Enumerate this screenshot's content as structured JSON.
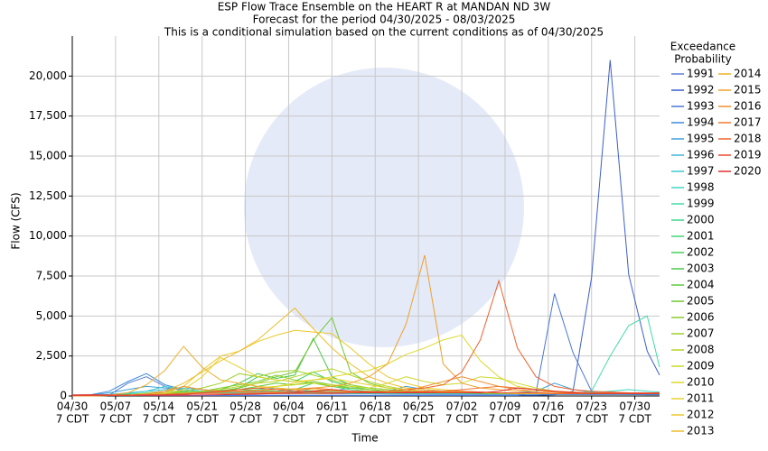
{
  "chart_data": {
    "type": "line",
    "title_lines": [
      "ESP Flow Trace Ensemble on the HEART R at MANDAN ND 3W",
      "Forecast for the period 04/30/2025 - 08/03/2025",
      "This is a conditional simulation based on the current conditions as of 04/30/2025"
    ],
    "x_label": "Time",
    "y_label": "Flow (CFS)",
    "legend_title": [
      "Exceedance",
      "Probability"
    ],
    "xlim": [
      "04/30",
      "08/03"
    ],
    "xticks": [
      "04/30",
      "05/07",
      "05/14",
      "05/21",
      "05/28",
      "06/04",
      "06/11",
      "06/18",
      "06/25",
      "07/02",
      "07/09",
      "07/16",
      "07/23",
      "07/30"
    ],
    "xtick_suffix": "7 CDT",
    "ylim": [
      0,
      22500
    ],
    "yticks": [
      0,
      {
        "value": 2500,
        "label": "2,500"
      },
      {
        "value": 5000,
        "label": "5,000"
      },
      {
        "value": 7500,
        "label": "7,500"
      },
      {
        "value": 10000,
        "label": "10,000"
      },
      {
        "value": 12500,
        "label": "12,500"
      },
      {
        "value": 15000,
        "label": "15,000"
      },
      {
        "value": 17500,
        "label": "17,500"
      },
      {
        "value": 20000,
        "label": "20,000"
      }
    ],
    "grid": true,
    "x": [
      "04/30",
      "05/03",
      "05/06",
      "05/09",
      "05/12",
      "05/15",
      "05/18",
      "05/21",
      "05/24",
      "05/27",
      "05/30",
      "06/02",
      "06/05",
      "06/08",
      "06/11",
      "06/14",
      "06/17",
      "06/20",
      "06/23",
      "06/26",
      "06/29",
      "07/02",
      "07/05",
      "07/08",
      "07/11",
      "07/14",
      "07/17",
      "07/20",
      "07/23",
      "07/26",
      "07/29",
      "08/01",
      "08/03"
    ],
    "series": [
      {
        "name": "1991",
        "color": "#5b7fd0",
        "values": [
          50,
          50,
          60,
          800,
          1200,
          600,
          300,
          250,
          200,
          200,
          180,
          170,
          160,
          150,
          150,
          140,
          140,
          130,
          130,
          130,
          120,
          120,
          120,
          110,
          110,
          110,
          110,
          100,
          100,
          100,
          100,
          100,
          100
        ]
      },
      {
        "name": "1992",
        "color": "#3c5fc8",
        "values": [
          40,
          40,
          40,
          40,
          40,
          40,
          40,
          40,
          40,
          40,
          40,
          40,
          40,
          40,
          40,
          40,
          40,
          40,
          40,
          40,
          40,
          40,
          40,
          40,
          40,
          40,
          80,
          300,
          7400,
          21000,
          7600,
          2800,
          1300
        ]
      },
      {
        "name": "1993",
        "color": "#4a76d6",
        "values": [
          30,
          30,
          30,
          30,
          30,
          30,
          30,
          30,
          30,
          30,
          30,
          30,
          30,
          30,
          30,
          30,
          30,
          30,
          30,
          30,
          30,
          30,
          30,
          30,
          30,
          200,
          6400,
          2700,
          300,
          150,
          100,
          80,
          80
        ]
      },
      {
        "name": "1994",
        "color": "#3d8ad8",
        "values": [
          60,
          80,
          300,
          900,
          1400,
          700,
          400,
          300,
          250,
          200,
          200,
          180,
          170,
          160,
          150,
          150,
          140,
          140,
          130,
          130,
          120,
          120,
          110,
          110,
          110,
          100,
          100,
          100,
          100,
          100,
          100,
          100,
          100
        ]
      },
      {
        "name": "1995",
        "color": "#3fa0d8",
        "values": [
          40,
          60,
          200,
          400,
          600,
          500,
          400,
          300,
          250,
          250,
          200,
          200,
          250,
          300,
          250,
          200,
          200,
          300,
          600,
          400,
          300,
          250,
          200,
          200,
          200,
          300,
          800,
          400,
          250,
          200,
          200,
          200,
          200
        ]
      },
      {
        "name": "1996",
        "color": "#40b6d8",
        "values": [
          30,
          40,
          100,
          200,
          300,
          400,
          500,
          400,
          300,
          300,
          250,
          250,
          200,
          200,
          300,
          500,
          400,
          300,
          300,
          250,
          200,
          200,
          200,
          200,
          150,
          150,
          150,
          150,
          150,
          150,
          150,
          150,
          150
        ]
      },
      {
        "name": "1997",
        "color": "#3ccbd0",
        "values": [
          20,
          30,
          80,
          150,
          300,
          600,
          400,
          300,
          250,
          200,
          200,
          200,
          250,
          300,
          400,
          300,
          250,
          200,
          200,
          150,
          150,
          150,
          150,
          150,
          150,
          150,
          150,
          150,
          150,
          150,
          150,
          150,
          150
        ]
      },
      {
        "name": "1998",
        "color": "#3dd8c0",
        "values": [
          20,
          30,
          60,
          100,
          150,
          200,
          300,
          250,
          200,
          200,
          150,
          150,
          200,
          300,
          250,
          200,
          200,
          150,
          150,
          150,
          150,
          150,
          150,
          150,
          150,
          150,
          150,
          150,
          200,
          300,
          400,
          300,
          250
        ]
      },
      {
        "name": "1999",
        "color": "#40dba8",
        "values": [
          20,
          30,
          50,
          80,
          100,
          150,
          200,
          200,
          150,
          150,
          150,
          150,
          150,
          200,
          200,
          150,
          150,
          150,
          150,
          150,
          150,
          150,
          150,
          150,
          150,
          150,
          150,
          150,
          300,
          2500,
          4400,
          5000,
          1800
        ]
      },
      {
        "name": "2000",
        "color": "#3fd890",
        "values": [
          20,
          30,
          50,
          100,
          200,
          300,
          300,
          250,
          200,
          300,
          400,
          500,
          400,
          300,
          300,
          250,
          200,
          200,
          200,
          200,
          200,
          200,
          200,
          150,
          150,
          150,
          150,
          150,
          150,
          150,
          150,
          150,
          150
        ]
      },
      {
        "name": "2001",
        "color": "#3fd478",
        "values": [
          20,
          30,
          60,
          100,
          150,
          200,
          250,
          300,
          350,
          400,
          350,
          300,
          400,
          800,
          600,
          400,
          300,
          300,
          250,
          250,
          200,
          200,
          200,
          200,
          150,
          150,
          150,
          150,
          150,
          150,
          150,
          150,
          150
        ]
      },
      {
        "name": "2002",
        "color": "#40cf60",
        "values": [
          20,
          20,
          40,
          60,
          100,
          150,
          200,
          200,
          300,
          500,
          1200,
          1000,
          900,
          1500,
          900,
          600,
          400,
          300,
          250,
          200,
          200,
          200,
          200,
          150,
          150,
          150,
          150,
          150,
          150,
          150,
          150,
          150,
          150
        ]
      },
      {
        "name": "2003",
        "color": "#4ac84a",
        "values": [
          20,
          20,
          40,
          60,
          100,
          150,
          200,
          300,
          400,
          800,
          1400,
          1100,
          1300,
          3600,
          1200,
          700,
          500,
          400,
          300,
          250,
          200,
          200,
          200,
          200,
          150,
          150,
          150,
          150,
          150,
          150,
          150,
          150,
          150
        ]
      },
      {
        "name": "2004",
        "color": "#5ec83a",
        "values": [
          20,
          20,
          40,
          60,
          80,
          100,
          150,
          200,
          300,
          400,
          600,
          800,
          700,
          900,
          700,
          500,
          400,
          300,
          250,
          200,
          200,
          200,
          150,
          150,
          150,
          150,
          150,
          150,
          150,
          150,
          150,
          150,
          150
        ]
      },
      {
        "name": "2005",
        "color": "#70c830",
        "values": [
          20,
          20,
          40,
          60,
          80,
          100,
          150,
          200,
          300,
          500,
          800,
          1200,
          1500,
          3500,
          4900,
          1500,
          800,
          500,
          400,
          300,
          250,
          200,
          200,
          200,
          150,
          150,
          150,
          150,
          150,
          150,
          150,
          150,
          150
        ]
      },
      {
        "name": "2006",
        "color": "#88cc2a",
        "values": [
          20,
          20,
          30,
          50,
          80,
          100,
          150,
          300,
          500,
          700,
          900,
          1300,
          1000,
          800,
          600,
          500,
          400,
          300,
          300,
          250,
          200,
          200,
          200,
          150,
          150,
          150,
          150,
          150,
          150,
          150,
          150,
          150,
          150
        ]
      },
      {
        "name": "2007",
        "color": "#a0d028",
        "values": [
          20,
          20,
          30,
          50,
          80,
          150,
          300,
          500,
          800,
          1400,
          1200,
          1500,
          1600,
          1300,
          1000,
          700,
          500,
          400,
          300,
          300,
          250,
          200,
          200,
          200,
          150,
          150,
          150,
          150,
          150,
          150,
          150,
          150,
          150
        ]
      },
      {
        "name": "2008",
        "color": "#b8d428",
        "values": [
          20,
          20,
          30,
          40,
          60,
          100,
          200,
          300,
          400,
          600,
          800,
          900,
          1200,
          1500,
          1700,
          1300,
          900,
          600,
          400,
          300,
          250,
          200,
          200,
          200,
          150,
          150,
          150,
          150,
          150,
          150,
          150,
          150,
          150
        ]
      },
      {
        "name": "2009",
        "color": "#ccd82a",
        "values": [
          20,
          20,
          30,
          40,
          60,
          100,
          150,
          200,
          300,
          400,
          500,
          600,
          700,
          800,
          700,
          600,
          500,
          800,
          1200,
          900,
          700,
          800,
          1200,
          1100,
          800,
          500,
          300,
          200,
          150,
          150,
          150,
          150,
          150
        ]
      },
      {
        "name": "2010",
        "color": "#dcd82a",
        "values": [
          20,
          20,
          30,
          40,
          60,
          100,
          150,
          200,
          300,
          400,
          500,
          600,
          800,
          1000,
          1200,
          1400,
          1600,
          2000,
          2600,
          3000,
          3500,
          3800,
          2200,
          1200,
          600,
          400,
          300,
          200,
          200,
          200,
          200,
          200,
          200
        ]
      },
      {
        "name": "2011",
        "color": "#e6d22a",
        "values": [
          20,
          20,
          30,
          50,
          80,
          150,
          400,
          1200,
          2400,
          1800,
          1200,
          1000,
          900,
          1000,
          1100,
          900,
          700,
          500,
          400,
          300,
          250,
          200,
          200,
          200,
          150,
          150,
          150,
          150,
          150,
          150,
          150,
          150,
          150
        ]
      },
      {
        "name": "2012",
        "color": "#ecc82a",
        "values": [
          20,
          20,
          30,
          50,
          100,
          200,
          600,
          1600,
          2500,
          2800,
          3400,
          3800,
          4100,
          4000,
          3900,
          3000,
          2000,
          1200,
          800,
          500,
          400,
          300,
          250,
          200,
          200,
          200,
          150,
          150,
          150,
          150,
          150,
          150,
          150
        ]
      },
      {
        "name": "2013",
        "color": "#f0bc2a",
        "values": [
          20,
          20,
          30,
          60,
          150,
          300,
          800,
          1500,
          2200,
          2800,
          3500,
          4500,
          5500,
          4200,
          3000,
          2000,
          1200,
          800,
          500,
          400,
          300,
          250,
          200,
          200,
          200,
          150,
          150,
          150,
          150,
          150,
          150,
          150,
          150
        ]
      },
      {
        "name": "2014",
        "color": "#f0b02a",
        "values": [
          20,
          30,
          60,
          200,
          700,
          1600,
          3100,
          1800,
          1000,
          800,
          600,
          500,
          400,
          400,
          350,
          300,
          300,
          250,
          250,
          200,
          200,
          200,
          200,
          200,
          150,
          150,
          150,
          150,
          150,
          150,
          150,
          150,
          150
        ]
      },
      {
        "name": "2015",
        "color": "#f0a02a",
        "values": [
          20,
          20,
          30,
          50,
          80,
          100,
          150,
          200,
          250,
          300,
          350,
          400,
          450,
          500,
          600,
          800,
          1200,
          2000,
          4500,
          8800,
          2000,
          800,
          500,
          400,
          300,
          300,
          250,
          200,
          200,
          200,
          200,
          200,
          200
        ]
      },
      {
        "name": "2016",
        "color": "#f09030",
        "values": [
          20,
          20,
          30,
          50,
          100,
          300,
          600,
          400,
          300,
          250,
          200,
          200,
          200,
          250,
          300,
          250,
          200,
          200,
          300,
          600,
          900,
          1200,
          900,
          600,
          400,
          300,
          250,
          200,
          200,
          200,
          200,
          200,
          200
        ]
      },
      {
        "name": "2017",
        "color": "#f07a30",
        "values": [
          20,
          20,
          30,
          50,
          80,
          100,
          150,
          200,
          250,
          300,
          300,
          250,
          300,
          500,
          400,
          300,
          250,
          200,
          200,
          250,
          300,
          400,
          500,
          600,
          500,
          400,
          300,
          250,
          200,
          200,
          200,
          200,
          200
        ]
      },
      {
        "name": "2018",
        "color": "#ec6430",
        "values": [
          20,
          20,
          30,
          50,
          80,
          100,
          120,
          150,
          150,
          150,
          150,
          150,
          150,
          150,
          150,
          200,
          250,
          300,
          400,
          500,
          700,
          1500,
          3500,
          7200,
          3000,
          1200,
          600,
          400,
          300,
          250,
          200,
          200,
          200
        ]
      },
      {
        "name": "2019",
        "color": "#e84c30",
        "values": [
          60,
          80,
          60,
          50,
          50,
          60,
          100,
          200,
          300,
          400,
          500,
          400,
          300,
          250,
          200,
          200,
          200,
          200,
          250,
          300,
          300,
          300,
          250,
          200,
          200,
          200,
          150,
          150,
          150,
          150,
          150,
          150,
          150
        ]
      },
      {
        "name": "2020",
        "color": "#e03030",
        "values": [
          50,
          60,
          50,
          40,
          40,
          40,
          50,
          60,
          80,
          100,
          120,
          150,
          200,
          300,
          400,
          300,
          250,
          200,
          200,
          200,
          200,
          200,
          200,
          300,
          500,
          400,
          300,
          200,
          150,
          150,
          150,
          150,
          150
        ]
      }
    ]
  }
}
